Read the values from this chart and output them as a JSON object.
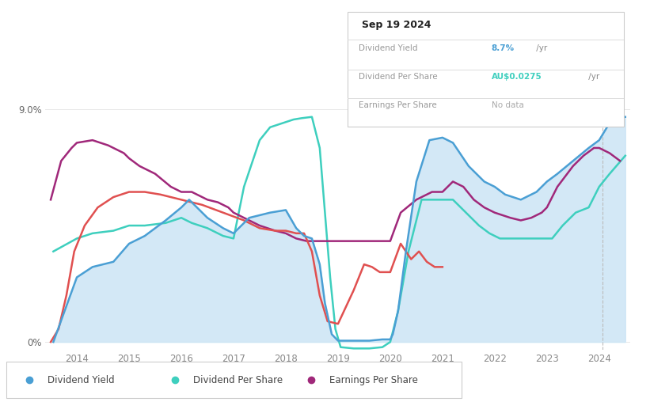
{
  "bg_color": "#ffffff",
  "plot_bg_color": "#ffffff",
  "grid_color": "#e8e8e8",
  "fill_color": "#cce5f5",
  "x_ticks": [
    2014,
    2015,
    2016,
    2017,
    2018,
    2019,
    2020,
    2021,
    2022,
    2023,
    2024
  ],
  "xlim": [
    2013.4,
    2024.6
  ],
  "ylim": [
    -0.3,
    9.8
  ],
  "ytick_vals": [
    0,
    9.0
  ],
  "ytick_labels": [
    "0%",
    "9.0%"
  ],
  "dividend_yield_color": "#4a9fd4",
  "dividend_yield_x": [
    2013.55,
    2014.0,
    2014.3,
    2014.7,
    2015.0,
    2015.3,
    2015.7,
    2016.0,
    2016.15,
    2016.5,
    2016.8,
    2017.0,
    2017.3,
    2017.7,
    2018.0,
    2018.2,
    2018.35,
    2018.5,
    2018.65,
    2018.75,
    2018.88,
    2019.0,
    2019.1,
    2019.3,
    2019.6,
    2019.85,
    2020.0,
    2020.05,
    2020.15,
    2020.3,
    2020.5,
    2020.75,
    2021.0,
    2021.2,
    2021.5,
    2021.8,
    2022.0,
    2022.2,
    2022.5,
    2022.8,
    2023.0,
    2023.2,
    2023.5,
    2023.8,
    2024.0,
    2024.15,
    2024.35,
    2024.5
  ],
  "dividend_yield_y": [
    0.0,
    2.5,
    2.9,
    3.1,
    3.8,
    4.1,
    4.7,
    5.2,
    5.5,
    4.8,
    4.4,
    4.2,
    4.8,
    5.0,
    5.1,
    4.4,
    4.1,
    4.0,
    3.0,
    1.5,
    0.3,
    0.05,
    0.05,
    0.05,
    0.05,
    0.1,
    0.1,
    0.3,
    1.2,
    3.5,
    6.2,
    7.8,
    7.9,
    7.7,
    6.8,
    6.2,
    6.0,
    5.7,
    5.5,
    5.8,
    6.2,
    6.5,
    7.0,
    7.5,
    7.8,
    8.3,
    8.7,
    8.7
  ],
  "dividend_per_share_color": "#3ecfbe",
  "dividend_per_share_x": [
    2013.55,
    2014.0,
    2014.3,
    2014.7,
    2015.0,
    2015.3,
    2015.7,
    2016.0,
    2016.2,
    2016.5,
    2016.8,
    2017.0,
    2017.2,
    2017.5,
    2017.7,
    2018.0,
    2018.15,
    2018.3,
    2018.5,
    2018.65,
    2018.75,
    2018.85,
    2018.95,
    2019.05,
    2019.3,
    2019.6,
    2019.85,
    2020.0,
    2020.15,
    2020.35,
    2020.6,
    2020.85,
    2021.0,
    2021.2,
    2021.45,
    2021.7,
    2021.9,
    2022.1,
    2022.35,
    2022.6,
    2022.85,
    2023.1,
    2023.3,
    2023.55,
    2023.8,
    2024.0,
    2024.2,
    2024.5
  ],
  "dividend_per_share_y": [
    3.5,
    4.0,
    4.2,
    4.3,
    4.5,
    4.5,
    4.6,
    4.8,
    4.6,
    4.4,
    4.1,
    4.0,
    6.0,
    7.8,
    8.3,
    8.5,
    8.6,
    8.65,
    8.7,
    7.5,
    5.0,
    2.5,
    0.5,
    -0.2,
    -0.25,
    -0.25,
    -0.2,
    0.0,
    1.2,
    3.5,
    5.5,
    5.5,
    5.5,
    5.5,
    5.0,
    4.5,
    4.2,
    4.0,
    4.0,
    4.0,
    4.0,
    4.0,
    4.5,
    5.0,
    5.2,
    6.0,
    6.5,
    7.2
  ],
  "earnings_per_share_color": "#a0287a",
  "earnings_per_share_x": [
    2013.5,
    2013.7,
    2013.9,
    2014.0,
    2014.3,
    2014.6,
    2014.9,
    2015.0,
    2015.2,
    2015.5,
    2015.8,
    2016.0,
    2016.2,
    2016.5,
    2016.7,
    2016.9,
    2017.0,
    2017.2,
    2017.5,
    2017.8,
    2018.0,
    2018.2,
    2018.4,
    2018.6,
    2018.8,
    2019.0,
    2019.3,
    2019.6,
    2019.9,
    2020.0,
    2020.2,
    2020.5,
    2020.8,
    2021.0,
    2021.2,
    2021.4,
    2021.6,
    2021.8,
    2022.0,
    2022.15,
    2022.3,
    2022.5,
    2022.7,
    2022.9,
    2023.0,
    2023.2,
    2023.5,
    2023.7,
    2023.9,
    2024.0,
    2024.2,
    2024.4
  ],
  "earnings_per_share_y": [
    5.5,
    7.0,
    7.5,
    7.7,
    7.8,
    7.6,
    7.3,
    7.1,
    6.8,
    6.5,
    6.0,
    5.8,
    5.8,
    5.5,
    5.4,
    5.2,
    5.0,
    4.8,
    4.5,
    4.3,
    4.2,
    4.0,
    3.9,
    3.9,
    3.9,
    3.9,
    3.9,
    3.9,
    3.9,
    3.9,
    5.0,
    5.5,
    5.8,
    5.8,
    6.2,
    6.0,
    5.5,
    5.2,
    5.0,
    4.9,
    4.8,
    4.7,
    4.8,
    5.0,
    5.2,
    6.0,
    6.8,
    7.2,
    7.5,
    7.5,
    7.3,
    7.0
  ],
  "red_line_color": "#e05050",
  "red_line_x": [
    2013.5,
    2013.65,
    2013.8,
    2013.95,
    2014.15,
    2014.4,
    2014.7,
    2015.0,
    2015.3,
    2015.6,
    2016.0,
    2016.4,
    2016.8,
    2017.2,
    2017.5,
    2017.8,
    2018.0,
    2018.2,
    2018.35,
    2018.5,
    2018.65,
    2018.8,
    2019.0,
    2019.3,
    2019.5,
    2019.65,
    2019.8,
    2020.0,
    2020.2,
    2020.4,
    2020.55,
    2020.7,
    2020.85,
    2021.0
  ],
  "red_line_y": [
    0.0,
    0.5,
    1.8,
    3.5,
    4.5,
    5.2,
    5.6,
    5.8,
    5.8,
    5.7,
    5.5,
    5.3,
    5.0,
    4.7,
    4.4,
    4.3,
    4.3,
    4.2,
    4.2,
    3.5,
    1.8,
    0.8,
    0.7,
    2.0,
    3.0,
    2.9,
    2.7,
    2.7,
    3.8,
    3.2,
    3.5,
    3.1,
    2.9,
    2.9
  ],
  "past_line_x": 2024.07,
  "tooltip": {
    "date": "Sep 19 2024",
    "rows": [
      {
        "label": "Dividend Yield",
        "value": "8.7%",
        "unit": " /yr",
        "color": "#4a9fd4"
      },
      {
        "label": "Dividend Per Share",
        "value": "AU$0.0275",
        "unit": " /yr",
        "color": "#3ecfbe"
      },
      {
        "label": "Earnings Per Share",
        "value": "No data",
        "unit": "",
        "color": "#aaaaaa"
      }
    ]
  },
  "legend": [
    {
      "label": "Dividend Yield",
      "color": "#4a9fd4"
    },
    {
      "label": "Dividend Per Share",
      "color": "#3ecfbe"
    },
    {
      "label": "Earnings Per Share",
      "color": "#a0287a"
    }
  ]
}
